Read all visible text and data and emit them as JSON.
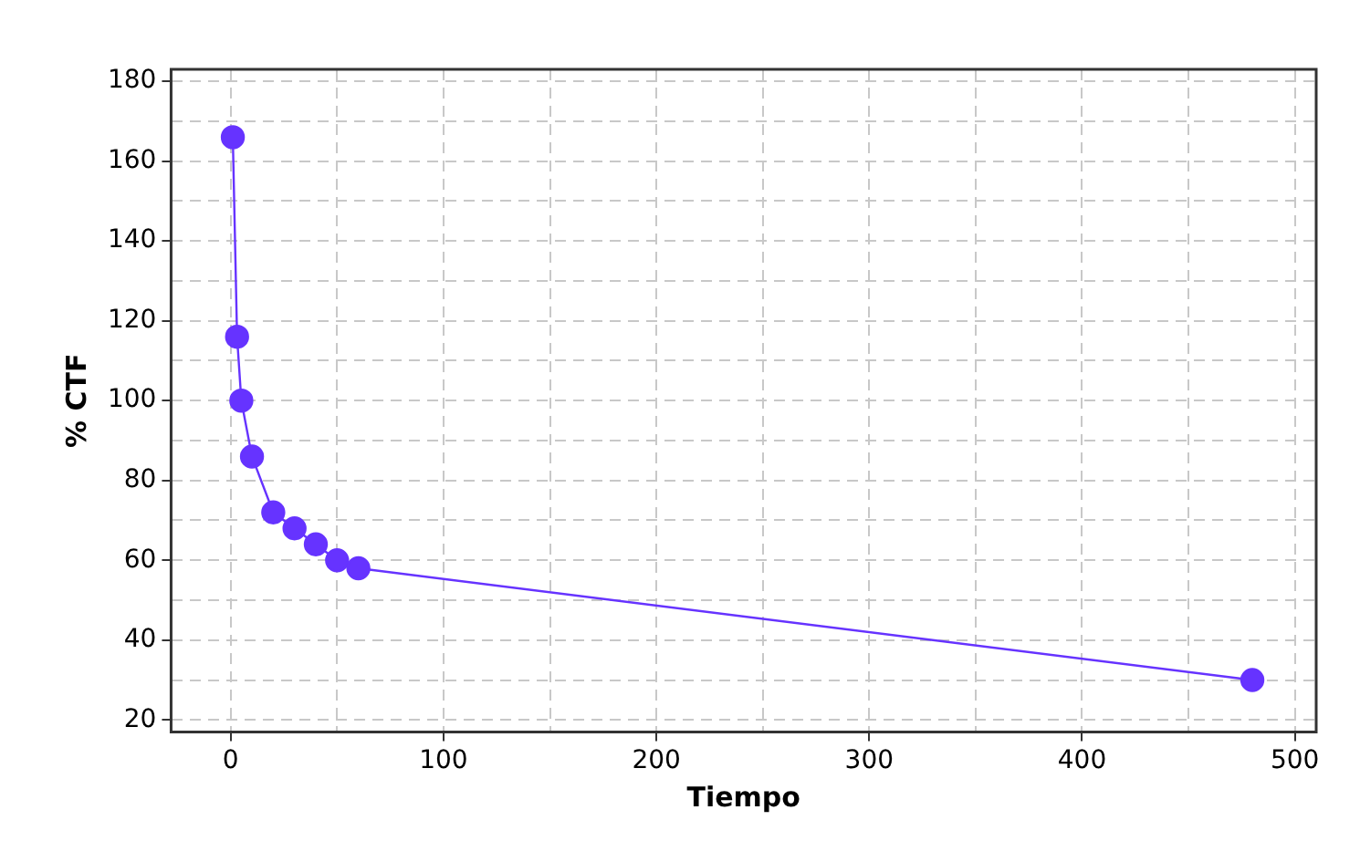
{
  "chart_data": {
    "type": "line",
    "xlabel": "Tiempo",
    "ylabel": "% CTF",
    "x": [
      1,
      3,
      5,
      10,
      20,
      30,
      40,
      50,
      60,
      480
    ],
    "series": [
      {
        "color": "#6633ff",
        "values": [
          166,
          116,
          100,
          86,
          72,
          68,
          64,
          60,
          58,
          30
        ]
      }
    ],
    "xlim": [
      -28,
      510
    ],
    "xticks": [
      0,
      {
        "value": 50,
        "label": null
      },
      100,
      {
        "value": 150,
        "label": null
      },
      200,
      {
        "value": 250,
        "label": null
      },
      300,
      {
        "value": 350,
        "label": null
      },
      400,
      {
        "value": 450,
        "label": null
      },
      500
    ],
    "ylim": [
      17,
      183
    ],
    "yticks": [
      20,
      {
        "value": 30,
        "label": null
      },
      40,
      {
        "value": 50,
        "label": null
      },
      60,
      {
        "value": 70,
        "label": null
      },
      80,
      {
        "value": 90,
        "label": null
      },
      100,
      {
        "value": 110,
        "label": null
      },
      120,
      {
        "value": 130,
        "label": null
      },
      140,
      {
        "value": 150,
        "label": null
      },
      160,
      {
        "value": 170,
        "label": null
      },
      180
    ],
    "grid": true,
    "marker": "circle",
    "line_style": "solid",
    "legend": false
  }
}
